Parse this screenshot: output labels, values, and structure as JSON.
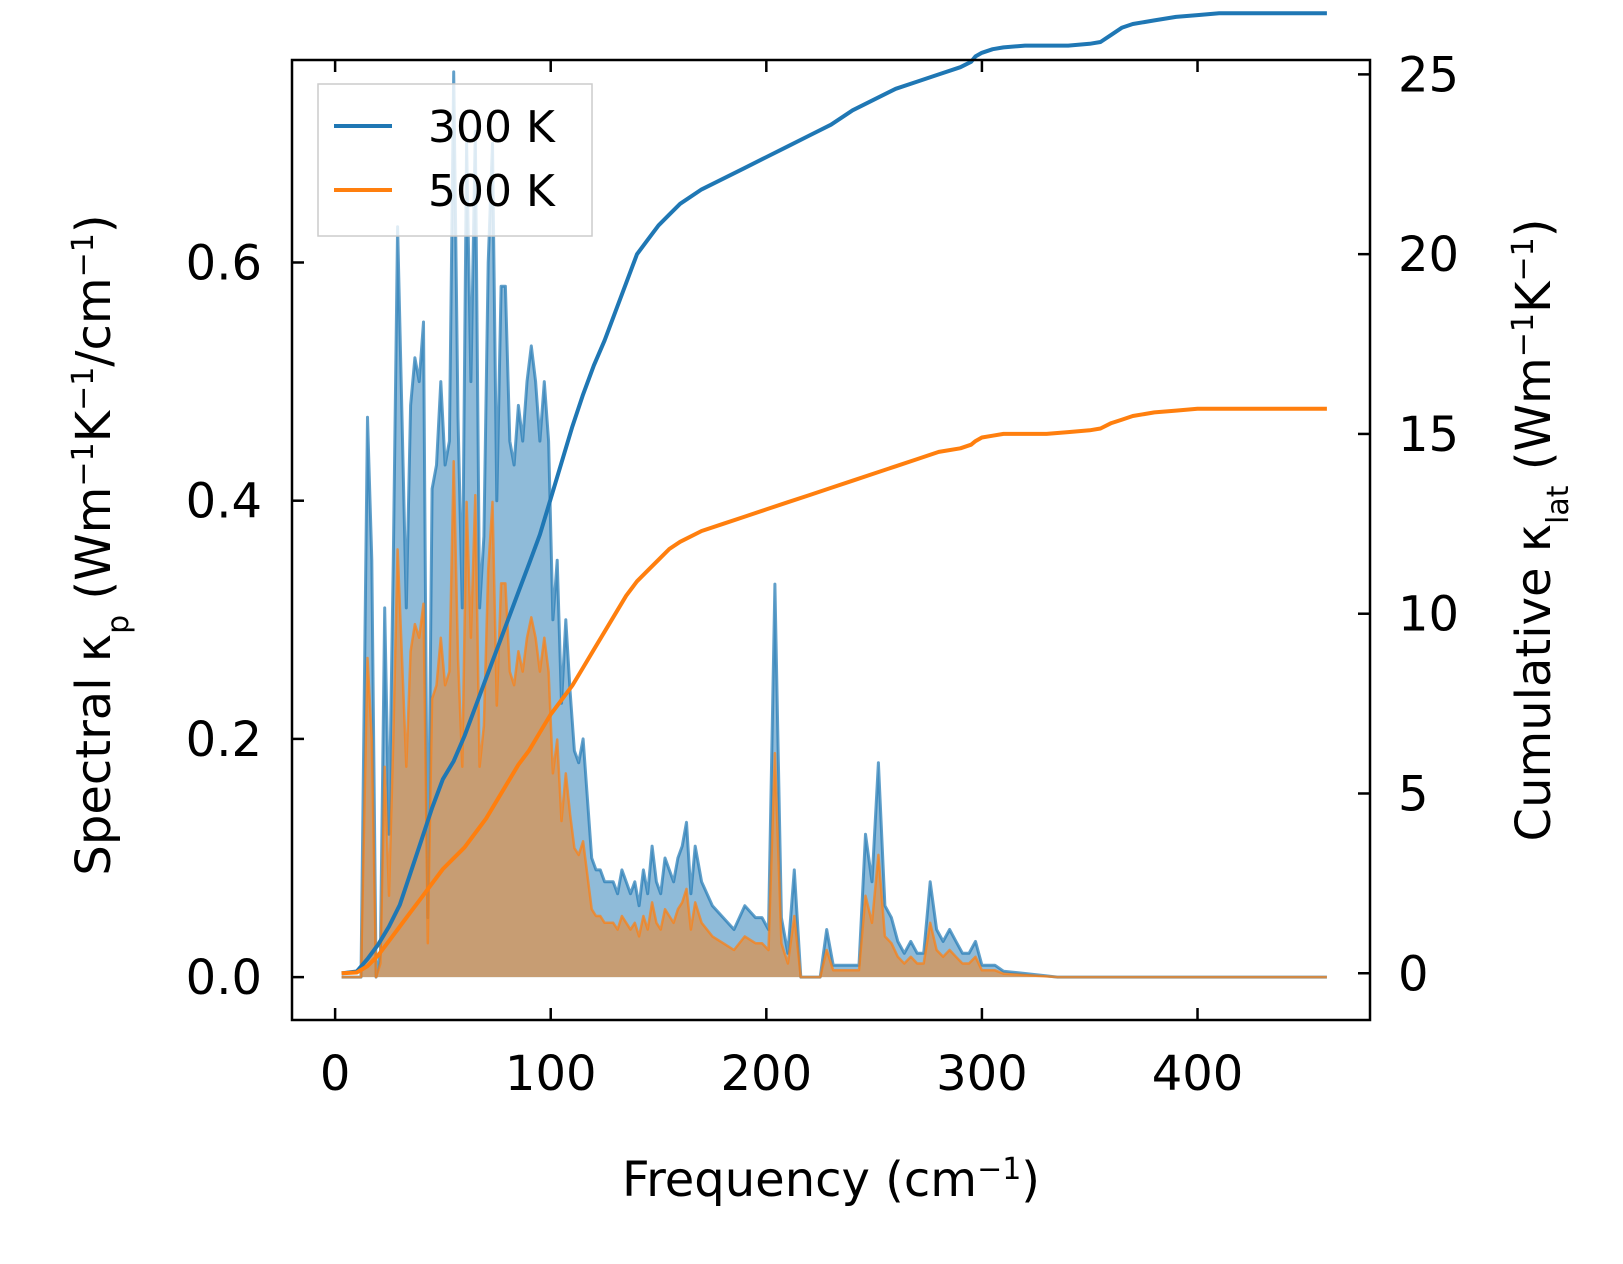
{
  "chart_data": {
    "type": "area",
    "xlabel": {
      "main": "Frequency (cm",
      "sup": "−1",
      "tail": ")"
    },
    "ylabel_left": {
      "parts": [
        {
          "t": "Spectral κ",
          "k": "n"
        },
        {
          "t": "p",
          "k": "sub"
        },
        {
          "t": " (Wm",
          "k": "n"
        },
        {
          "t": "−1",
          "k": "sup"
        },
        {
          "t": "K",
          "k": "n"
        },
        {
          "t": "−1",
          "k": "sup"
        },
        {
          "t": "/cm",
          "k": "n"
        },
        {
          "t": "−1",
          "k": "sup"
        },
        {
          "t": ")",
          "k": "n"
        }
      ]
    },
    "ylabel_right": {
      "parts": [
        {
          "t": "Cumulative κ",
          "k": "n"
        },
        {
          "t": "lat",
          "k": "sub"
        },
        {
          "t": " (Wm",
          "k": "n"
        },
        {
          "t": "−1",
          "k": "sup"
        },
        {
          "t": "K",
          "k": "n"
        },
        {
          "t": "−1",
          "k": "sup"
        },
        {
          "t": ")",
          "k": "n"
        }
      ]
    },
    "xlim": [
      -20,
      480
    ],
    "ylim_left": [
      -0.036,
      0.77
    ],
    "ylim_right": [
      -1.3,
      25.4
    ],
    "xticks": [
      0,
      100,
      200,
      300,
      400
    ],
    "xtick_labels": [
      "0",
      "100",
      "200",
      "300",
      "400"
    ],
    "yticks_left": [
      0.0,
      0.2,
      0.4,
      0.6
    ],
    "ytick_labels_left": [
      "0.0",
      "0.2",
      "0.4",
      "0.6"
    ],
    "yticks_right": [
      0,
      5,
      10,
      15,
      20,
      25
    ],
    "ytick_labels_right": [
      "0",
      "5",
      "10",
      "15",
      "20",
      "25"
    ],
    "legend": {
      "position": "upper-left",
      "entries": [
        "300 K",
        "500 K"
      ]
    },
    "colors": {
      "series_300K": "#1f77b4",
      "series_500K": "#ff7f0e"
    },
    "spectral_frequency": [
      3,
      8,
      12,
      15,
      17,
      19,
      21,
      23,
      25,
      27,
      29,
      31,
      33,
      35,
      37,
      39,
      41,
      43,
      45,
      47,
      49,
      51,
      53,
      55,
      57,
      59,
      61,
      63,
      65,
      67,
      69,
      71,
      73,
      75,
      77,
      79,
      81,
      83,
      85,
      87,
      89,
      91,
      93,
      95,
      97,
      99,
      101,
      103,
      105,
      107,
      109,
      111,
      113,
      115,
      117,
      119,
      121,
      123,
      125,
      127,
      129,
      131,
      133,
      135,
      137,
      139,
      141,
      143,
      145,
      147,
      149,
      151,
      153,
      155,
      157,
      159,
      161,
      163,
      165,
      167,
      170,
      175,
      180,
      185,
      190,
      195,
      198,
      201,
      204,
      207,
      210,
      213,
      216,
      219,
      222,
      225,
      228,
      231,
      234,
      237,
      240,
      243,
      246,
      249,
      252,
      255,
      258,
      261,
      264,
      267,
      270,
      273,
      276,
      279,
      282,
      285,
      288,
      291,
      294,
      297,
      300,
      303,
      306,
      310,
      320,
      330,
      335,
      338,
      341,
      344,
      347,
      350,
      353,
      356,
      358,
      360,
      362,
      364,
      366,
      368,
      370,
      372,
      374,
      376,
      378,
      381,
      384,
      387,
      390,
      393,
      396,
      399,
      402,
      405,
      408,
      411,
      413,
      416,
      418,
      420,
      422,
      425,
      430,
      440,
      460
    ],
    "spectral_300K": [
      0,
      0,
      0,
      0.47,
      0.35,
      0,
      0.02,
      0.31,
      0.12,
      0.35,
      0.63,
      0.47,
      0.31,
      0.48,
      0.52,
      0.5,
      0.55,
      0.05,
      0.41,
      0.43,
      0.5,
      0.43,
      0.45,
      0.76,
      0.47,
      0.31,
      0.7,
      0.5,
      0.71,
      0.31,
      0.37,
      0.6,
      0.7,
      0.4,
      0.58,
      0.58,
      0.45,
      0.43,
      0.48,
      0.45,
      0.5,
      0.53,
      0.5,
      0.45,
      0.5,
      0.45,
      0.3,
      0.35,
      0.23,
      0.3,
      0.24,
      0.19,
      0.18,
      0.2,
      0.15,
      0.1,
      0.09,
      0.09,
      0.08,
      0.08,
      0.08,
      0.07,
      0.09,
      0.08,
      0.07,
      0.08,
      0.06,
      0.09,
      0.07,
      0.11,
      0.08,
      0.07,
      0.1,
      0.09,
      0.08,
      0.1,
      0.11,
      0.13,
      0.07,
      0.11,
      0.08,
      0.06,
      0.05,
      0.04,
      0.06,
      0.05,
      0.05,
      0.04,
      0.33,
      0.05,
      0.02,
      0.09,
      0,
      0,
      0,
      0,
      0.04,
      0.01,
      0.01,
      0.01,
      0.01,
      0.01,
      0.12,
      0.08,
      0.18,
      0.06,
      0.05,
      0.03,
      0.02,
      0.03,
      0.02,
      0.02,
      0.08,
      0.04,
      0.03,
      0.04,
      0.03,
      0.02,
      0.02,
      0.03,
      0.01,
      0.01,
      0.01,
      0.005,
      0.003,
      0.001,
      0,
      0,
      0,
      0,
      0,
      0,
      0,
      0,
      0,
      0,
      0,
      0,
      0,
      0,
      0,
      0,
      0,
      0,
      0,
      0,
      0,
      0,
      0,
      0,
      0,
      0,
      0,
      0,
      0,
      0,
      0,
      0,
      0,
      0,
      0,
      0,
      0,
      0,
      0,
      0,
      0,
      0,
      0,
      0,
      0,
      0,
      0,
      0,
      0,
      0,
      0
    ],
    "cumulative_frequency": [
      3,
      10,
      15,
      20,
      25,
      30,
      35,
      40,
      45,
      50,
      55,
      60,
      65,
      70,
      75,
      80,
      85,
      90,
      95,
      100,
      105,
      110,
      115,
      120,
      125,
      130,
      135,
      140,
      145,
      150,
      155,
      160,
      170,
      180,
      190,
      200,
      210,
      220,
      230,
      240,
      250,
      260,
      270,
      280,
      290,
      295,
      297,
      300,
      305,
      310,
      320,
      330,
      340,
      350,
      355,
      360,
      365,
      370,
      380,
      390,
      400,
      410,
      420,
      430,
      440,
      460
    ],
    "cumulative_300K": [
      0,
      0.05,
      0.4,
      0.8,
      1.3,
      1.9,
      2.8,
      3.7,
      4.6,
      5.4,
      5.9,
      6.6,
      7.4,
      8.2,
      9.0,
      9.8,
      10.6,
      11.4,
      12.2,
      13.2,
      14.2,
      15.2,
      16.1,
      16.9,
      17.6,
      18.4,
      19.2,
      20.0,
      20.4,
      20.8,
      21.1,
      21.4,
      21.8,
      22.1,
      22.4,
      22.7,
      23.0,
      23.3,
      23.6,
      24.0,
      24.3,
      24.6,
      24.8,
      25.0,
      25.2,
      25.35,
      25.5,
      25.6,
      25.7,
      25.75,
      25.8,
      25.8,
      25.8,
      25.85,
      25.9,
      26.1,
      26.3,
      26.4,
      26.5,
      26.6,
      26.65,
      26.7,
      26.7,
      26.7,
      26.7,
      26.7
    ],
    "cumulative_500K": [
      0,
      0.02,
      0.2,
      0.5,
      0.9,
      1.3,
      1.7,
      2.1,
      2.5,
      2.9,
      3.2,
      3.5,
      3.9,
      4.3,
      4.8,
      5.3,
      5.8,
      6.2,
      6.7,
      7.2,
      7.6,
      8.0,
      8.5,
      9.0,
      9.5,
      10.0,
      10.5,
      10.9,
      11.2,
      11.5,
      11.8,
      12.0,
      12.3,
      12.5,
      12.7,
      12.9,
      13.1,
      13.3,
      13.5,
      13.7,
      13.9,
      14.1,
      14.3,
      14.5,
      14.6,
      14.7,
      14.8,
      14.9,
      14.95,
      15.0,
      15.0,
      15.0,
      15.05,
      15.1,
      15.15,
      15.3,
      15.4,
      15.5,
      15.6,
      15.65,
      15.7,
      15.7,
      15.7,
      15.7,
      15.7,
      15.7
    ]
  }
}
